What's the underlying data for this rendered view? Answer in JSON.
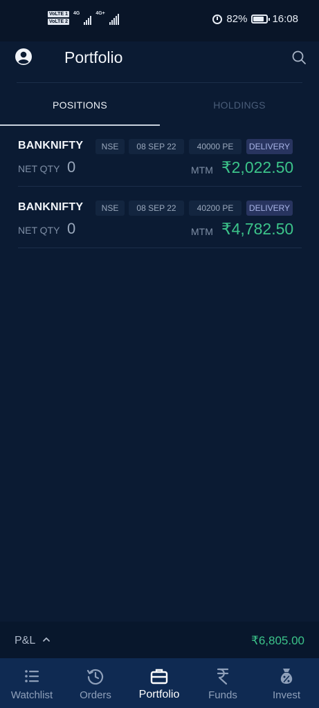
{
  "status_bar": {
    "sim1": "VoLTE 1",
    "sim2": "VoLTE 2",
    "net1": "4G",
    "net2": "4G+",
    "battery": "82%",
    "time": "16:08"
  },
  "header": {
    "title": "Portfolio"
  },
  "tabs": [
    {
      "label": "POSITIONS",
      "active": true
    },
    {
      "label": "HOLDINGS",
      "active": false
    }
  ],
  "positions": [
    {
      "symbol": "BANKNIFTY",
      "exchange": "NSE",
      "expiry": "08 SEP 22",
      "strike": "40000 PE",
      "product": "DELIVERY",
      "net_qty_label": "NET QTY",
      "net_qty": "0",
      "mtm_label": "MTM",
      "mtm": "₹2,022.50"
    },
    {
      "symbol": "BANKNIFTY",
      "exchange": "NSE",
      "expiry": "08 SEP 22",
      "strike": "40200 PE",
      "product": "DELIVERY",
      "net_qty_label": "NET QTY",
      "net_qty": "0",
      "mtm_label": "MTM",
      "mtm": "₹4,782.50"
    }
  ],
  "pnl": {
    "label": "P&L",
    "value": "₹6,805.00"
  },
  "bottom_nav": [
    {
      "label": "Watchlist",
      "icon": "list-icon"
    },
    {
      "label": "Orders",
      "icon": "history-icon"
    },
    {
      "label": "Portfolio",
      "icon": "briefcase-icon",
      "active": true
    },
    {
      "label": "Funds",
      "icon": "rupee-icon"
    },
    {
      "label": "Invest",
      "icon": "money-bag-icon"
    }
  ],
  "colors": {
    "background": "#0b1b33",
    "profit": "#3cc48a",
    "nav_background": "#0f2a52"
  }
}
